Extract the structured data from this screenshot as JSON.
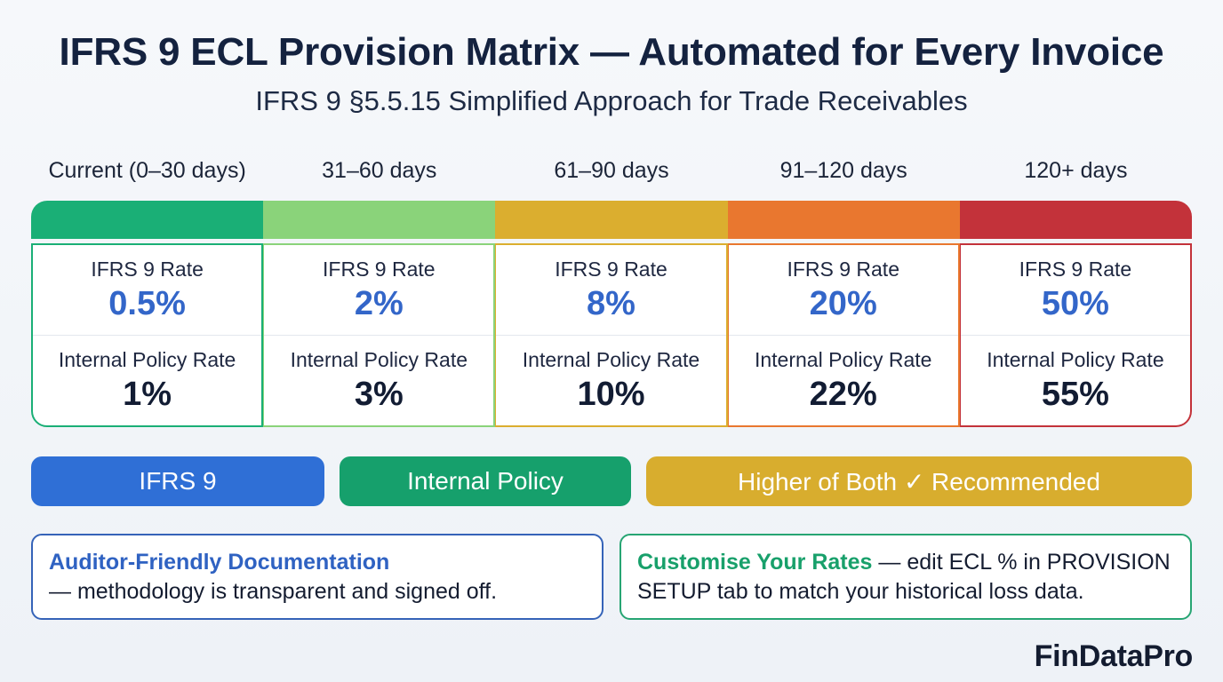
{
  "header": {
    "title": "IFRS 9 ECL Provision Matrix — Automated for Every Invoice",
    "subtitle": "IFRS 9 §5.5.15 Simplified Approach for Trade Receivables"
  },
  "colors": {
    "band_0": "#1aaf76",
    "band_1": "#8ad37a",
    "band_2": "#dbae2f",
    "band_3": "#e9772f",
    "band_4": "#c3323a",
    "ifrs_value": "#3366c9",
    "ifrs_pill": "#2f6fd6",
    "internal_pill": "#16a06c",
    "higher_pill": "#d8ad2e"
  },
  "matrix": {
    "ifrs_label": "IFRS 9 Rate",
    "internal_label": "Internal Policy Rate",
    "bands": [
      {
        "label": "Current (0–30 days)",
        "ifrs_rate": "0.5%",
        "internal_rate": "1%"
      },
      {
        "label": "31–60 days",
        "ifrs_rate": "2%",
        "internal_rate": "3%"
      },
      {
        "label": "61–90 days",
        "ifrs_rate": "8%",
        "internal_rate": "10%"
      },
      {
        "label": "91–120 days",
        "ifrs_rate": "20%",
        "internal_rate": "22%"
      },
      {
        "label": "120+ days",
        "ifrs_rate": "50%",
        "internal_rate": "55%"
      }
    ]
  },
  "options": {
    "ifrs": "IFRS 9",
    "internal": "Internal Policy",
    "higher": "Higher of Both ✓ Recommended"
  },
  "notes": {
    "auditor": {
      "highlight": "Auditor-Friendly Documentation",
      "text": "— methodology is transparent and signed off."
    },
    "customise": {
      "highlight": "Customise Your Rates",
      "text": " — edit ECL % in PROVISION SETUP tab to match your historical loss data."
    }
  },
  "brand": "FinDataPro"
}
